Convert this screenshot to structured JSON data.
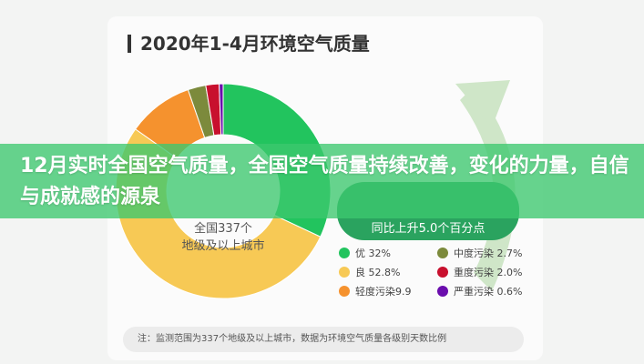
{
  "header": {
    "title": "2020年1-4月环境空气质量"
  },
  "banner": {
    "text": "12月实时全国空气质量，全国空气质量持续改善，变化的力量，自信与成就感的源泉"
  },
  "center_label": {
    "line1": "全国337个",
    "line2": "地级及以上城市"
  },
  "badge": {
    "line2": "同比上升5.0个百分点"
  },
  "note": "注：监测范围为337个地级及以上城市，数据为环境空气质量各级别天数比例",
  "chart_data": {
    "type": "pie",
    "donut": true,
    "title": "2020年1-4月环境空气质量",
    "categories": [
      "优",
      "良",
      "轻度污染",
      "中度污染",
      "重度污染",
      "严重污染"
    ],
    "values": [
      32,
      52.8,
      9.9,
      2.7,
      2.0,
      0.6
    ],
    "unit": "%",
    "colors": [
      "#22c45e",
      "#f7c955",
      "#f5922e",
      "#7c8a3c",
      "#c8102e",
      "#6a0dad"
    ],
    "legend": [
      "优 32%",
      "良 52.8%",
      "轻度污染9.9",
      "中度污染 2.7%",
      "重度污染 2.0%",
      "严重污染 0.6%"
    ],
    "legend_position": "right"
  }
}
